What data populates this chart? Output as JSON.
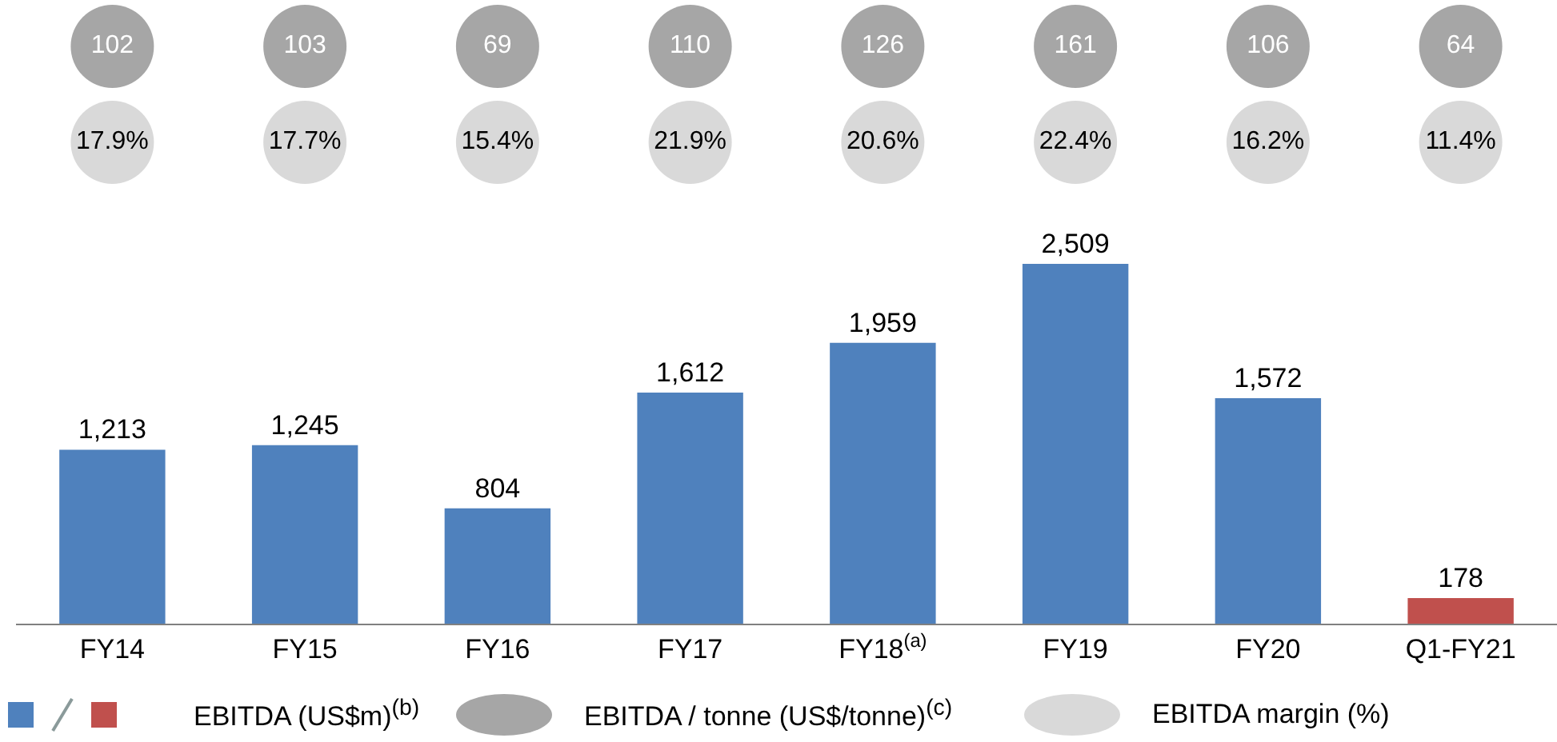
{
  "chart_data": [
    {
      "type": "other",
      "series": [
        {
          "name": "EBITDA / tonne (US$/tonne)$^{(c)}$",
          "color": "#a6a6a6",
          "values": [
            102,
            103,
            69,
            110,
            126,
            161,
            106,
            64
          ]
        }
      ],
      "data_labels": true,
      "legend": "bottom"
    },
    {
      "type": "other",
      "series": [
        {
          "name": "EBITDA margin (%)",
          "color": "#d9d9d9",
          "values": [
            17.9,
            17.7,
            15.4,
            21.9,
            20.6,
            22.4,
            16.2,
            11.4
          ],
          "value_labels": [
            "17.9%",
            "17.7%",
            "15.4%",
            "21.9%",
            "20.6%",
            "22.4%",
            "16.2%",
            "11.4%"
          ]
        }
      ],
      "legend": "bottom"
    },
    {
      "type": "bar",
      "categories": [
        "FY14",
        "FY15",
        "FY16",
        "FY17",
        "FY18$^{(a)}$",
        "FY19",
        "FY20",
        "Q1-FY21"
      ],
      "series": [
        {
          "name": "EBITDA (US$m)$^{(b)}$",
          "colors": [
            "#4f81bd",
            "#4f81bd",
            "#4f81bd",
            "#4f81bd",
            "#4f81bd",
            "#4f81bd",
            "#4f81bd",
            "#c0504d"
          ],
          "values": [
            1213,
            1245,
            804,
            1612,
            1959,
            2509,
            1572,
            178
          ],
          "value_labels": [
            "1,213",
            "1,245",
            "804",
            "1,612",
            "1,959",
            "2,509",
            "1,572",
            "178"
          ]
        }
      ],
      "legend": "bottom",
      "tick_labels": "x"
    }
  ]
}
